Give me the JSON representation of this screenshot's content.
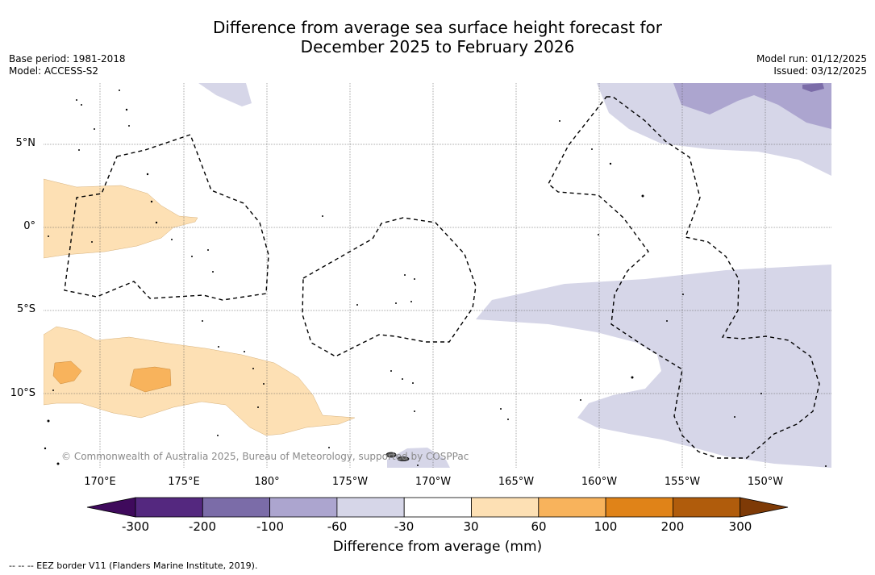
{
  "title": {
    "line1": "Difference from average sea surface height forecast for",
    "line2": "December 2025 to February 2026"
  },
  "meta_left": {
    "base_period": "Base period: 1981-2018",
    "model": "Model: ACCESS-S2"
  },
  "meta_right": {
    "model_run": "Model run: 01/12/2025",
    "issued": "Issued: 03/12/2025"
  },
  "map": {
    "lat_labels": [
      "5°N",
      "0°",
      "5°S",
      "10°S"
    ],
    "lon_labels": [
      "170°E",
      "175°E",
      "180°",
      "175°W",
      "170°W",
      "165°W",
      "160°W",
      "155°W",
      "150°W"
    ],
    "copyright": "© Commonwealth of Australia 2025, Bureau of Meteorology, supported by COSPPac"
  },
  "colorbar": {
    "ticks": [
      "-300",
      "-200",
      "-100",
      "-60",
      "-30",
      "30",
      "60",
      "100",
      "200",
      "300"
    ],
    "colors": [
      "#3f0a5c",
      "#54287f",
      "#7b6ca8",
      "#aca5cf",
      "#d6d6e8",
      "#ffffff",
      "#fde0b4",
      "#f8b35c",
      "#e08318",
      "#b05c0c",
      "#7e3a06"
    ],
    "label": "Difference from average (mm)"
  },
  "legend": {
    "eez_note": "-- -- -- EEZ border V11 (Flanders Marine Institute, 2019)."
  }
}
